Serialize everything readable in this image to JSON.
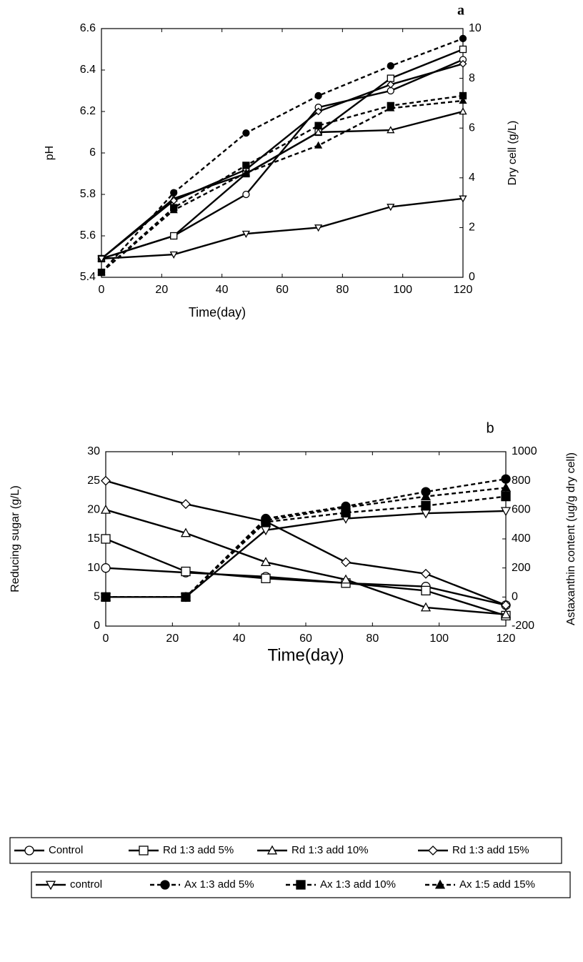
{
  "chart_data": [
    {
      "type": "line",
      "title": "a",
      "x_label": "Time(day)",
      "y_label": "pH",
      "y2_label": "Dry cell (g/L)",
      "x": [
        0,
        24,
        48,
        72,
        96,
        120
      ],
      "xlim": [
        0,
        120
      ],
      "xticks": [
        0,
        20,
        40,
        60,
        80,
        100,
        120
      ],
      "ylim": [
        5.4,
        6.6
      ],
      "yticks": [
        5.4,
        5.6,
        5.8,
        6,
        6.2,
        6.4,
        6.6
      ],
      "y2lim": [
        0,
        10
      ],
      "y2ticks": [
        0,
        2,
        4,
        6,
        8,
        10
      ],
      "series": [
        {
          "color": "#000000",
          "marker": "circle",
          "filled": false,
          "dash": false,
          "values": [
            5.49,
            5.6,
            5.8,
            6.22,
            6.3,
            6.45
          ]
        },
        {
          "color": "#000000",
          "marker": "square",
          "filled": false,
          "dash": false,
          "values": [
            5.49,
            5.6,
            5.9,
            6.1,
            6.36,
            6.5
          ]
        },
        {
          "color": "#000000",
          "marker": "triangle",
          "filled": false,
          "dash": false,
          "values": [
            5.49,
            5.78,
            5.9,
            6.1,
            6.11,
            6.2
          ]
        },
        {
          "color": "#000000",
          "marker": "diamond",
          "filled": false,
          "dash": false,
          "values": [
            5.49,
            5.77,
            5.92,
            6.2,
            6.33,
            6.43
          ]
        },
        {
          "color": "#000000",
          "marker": "triangle-down",
          "filled": false,
          "dash": false,
          "values": [
            5.49,
            5.51,
            5.61,
            5.64,
            5.74,
            5.78
          ]
        },
        {
          "color": "#000000",
          "marker": "circle",
          "filled": true,
          "dash": true,
          "axis": "y2",
          "values": [
            0.2,
            3.4,
            5.8,
            7.3,
            8.5,
            9.6
          ]
        },
        {
          "color": "#000000",
          "marker": "square",
          "filled": true,
          "dash": true,
          "axis": "y2",
          "values": [
            0.2,
            2.8,
            4.5,
            6.1,
            6.9,
            7.3
          ]
        },
        {
          "color": "#000000",
          "marker": "triangle",
          "filled": true,
          "dash": true,
          "axis": "y2",
          "values": [
            0.2,
            2.7,
            4.2,
            5.3,
            6.8,
            7.1
          ]
        }
      ]
    },
    {
      "type": "line",
      "title": "b",
      "x_label": "Time(day)",
      "y_label": "Reducing sugar (g/L)",
      "y2_label": "Astaxanthin content (ug/g dry cell)",
      "x": [
        0,
        24,
        48,
        72,
        96,
        120
      ],
      "xlim": [
        0,
        120
      ],
      "xticks": [
        0,
        20,
        40,
        60,
        80,
        100,
        120
      ],
      "ylim": [
        0,
        30
      ],
      "yticks": [
        0,
        5,
        10,
        15,
        20,
        25,
        30
      ],
      "y2lim": [
        -200,
        1000
      ],
      "y2ticks": [
        -200,
        0,
        200,
        400,
        600,
        800,
        1000
      ],
      "series": [
        {
          "name": "Control",
          "color": "#000000",
          "marker": "circle",
          "filled": false,
          "dash": false,
          "values": [
            10,
            9.2,
            8.5,
            7.4,
            6.8,
            3.6
          ]
        },
        {
          "name": "Rd 1:3 add 5%",
          "color": "#000000",
          "marker": "square",
          "filled": false,
          "dash": false,
          "values": [
            15,
            9.4,
            8.2,
            7.4,
            6.1,
            1.8
          ]
        },
        {
          "name": "Rd 1:3 add 10%",
          "color": "#000000",
          "marker": "triangle",
          "filled": false,
          "dash": false,
          "values": [
            20,
            16,
            11,
            8,
            3.2,
            2
          ]
        },
        {
          "name": "Rd 1:3 add 15%",
          "color": "#000000",
          "marker": "diamond",
          "filled": false,
          "dash": false,
          "values": [
            25,
            21,
            18,
            11,
            9,
            3.6
          ]
        },
        {
          "name": "control",
          "color": "#000000",
          "marker": "triangle-down",
          "filled": false,
          "dash": false,
          "axis": "y2",
          "values": [
            0,
            0,
            460,
            540,
            576,
            592
          ]
        },
        {
          "name": "Ax 1:3 add 5%",
          "color": "#000000",
          "marker": "circle",
          "filled": true,
          "dash": true,
          "axis": "y2",
          "values": [
            0,
            0,
            540,
            624,
            724,
            812
          ]
        },
        {
          "name": "Ax 1:3 add 10%",
          "color": "#000000",
          "marker": "square",
          "filled": true,
          "dash": true,
          "axis": "y2",
          "values": [
            0,
            0,
            516,
            580,
            628,
            692
          ]
        },
        {
          "name": "Ax 1:5 add 15%",
          "color": "#000000",
          "marker": "triangle",
          "filled": true,
          "dash": true,
          "axis": "y2",
          "values": [
            0,
            0,
            528,
            616,
            692,
            752
          ]
        }
      ]
    }
  ]
}
